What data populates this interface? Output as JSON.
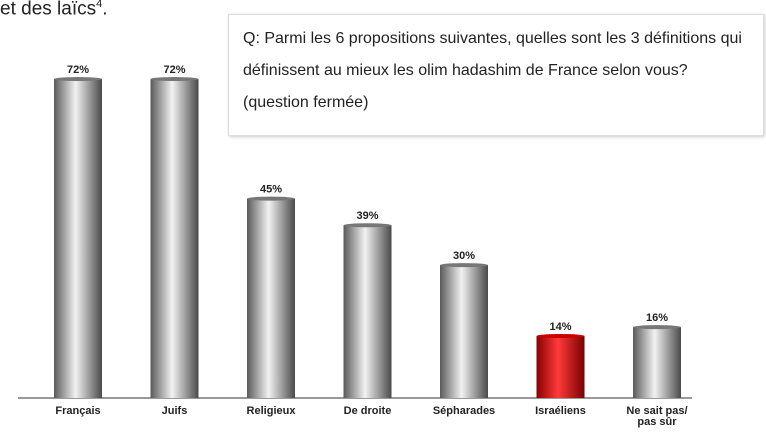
{
  "intro": "et des laïcs",
  "intro_note": "4",
  "intro_end": ".",
  "question": "Q: Parmi les 6 propositions suivantes, quelles sont les 3 définitions qui définissent au mieux les olim hadashim de France selon vous? (question fermée)",
  "chart_data": {
    "type": "bar",
    "categories": [
      "Français",
      "Juifs",
      "Religieux",
      "De droite",
      "Sépharades",
      "Israéliens",
      "Ne sait pas/ pas sûr"
    ],
    "values": [
      72,
      72,
      45,
      39,
      30,
      14,
      16
    ],
    "value_labels": [
      "72%",
      "72%",
      "45%",
      "39%",
      "30%",
      "14%",
      "16%"
    ],
    "colors": [
      "gray",
      "gray",
      "gray",
      "gray",
      "gray",
      "red",
      "gray"
    ]
  }
}
